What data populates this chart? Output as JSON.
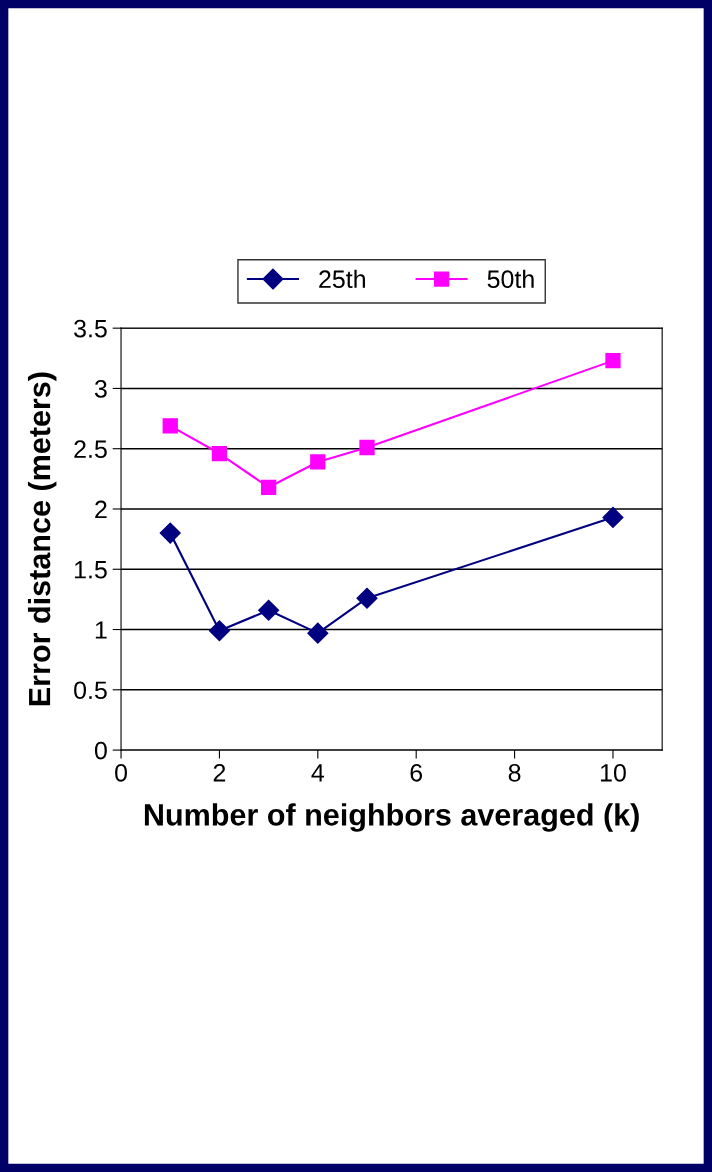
{
  "chart_data": {
    "type": "line",
    "xlabel": "Number of neighbors averaged (k)",
    "ylabel": "Error distance (meters)",
    "x": [
      1,
      2,
      3,
      4,
      5,
      10
    ],
    "series": [
      {
        "name": "25th",
        "color": "#000080",
        "marker": "diamond",
        "values": [
          1.8,
          0.99,
          1.16,
          0.97,
          1.26,
          1.93
        ]
      },
      {
        "name": "50th",
        "color": "#ff00ff",
        "marker": "square",
        "values": [
          2.69,
          2.46,
          2.18,
          2.39,
          2.51,
          3.23
        ]
      }
    ],
    "xlim": [
      0,
      11
    ],
    "xticks": [
      0,
      2,
      4,
      6,
      8,
      10
    ],
    "ylim": [
      0,
      3.5
    ],
    "yticks": [
      0,
      0.5,
      1,
      1.5,
      2,
      2.5,
      3,
      3.5
    ],
    "grid": "y",
    "legend": "top"
  }
}
